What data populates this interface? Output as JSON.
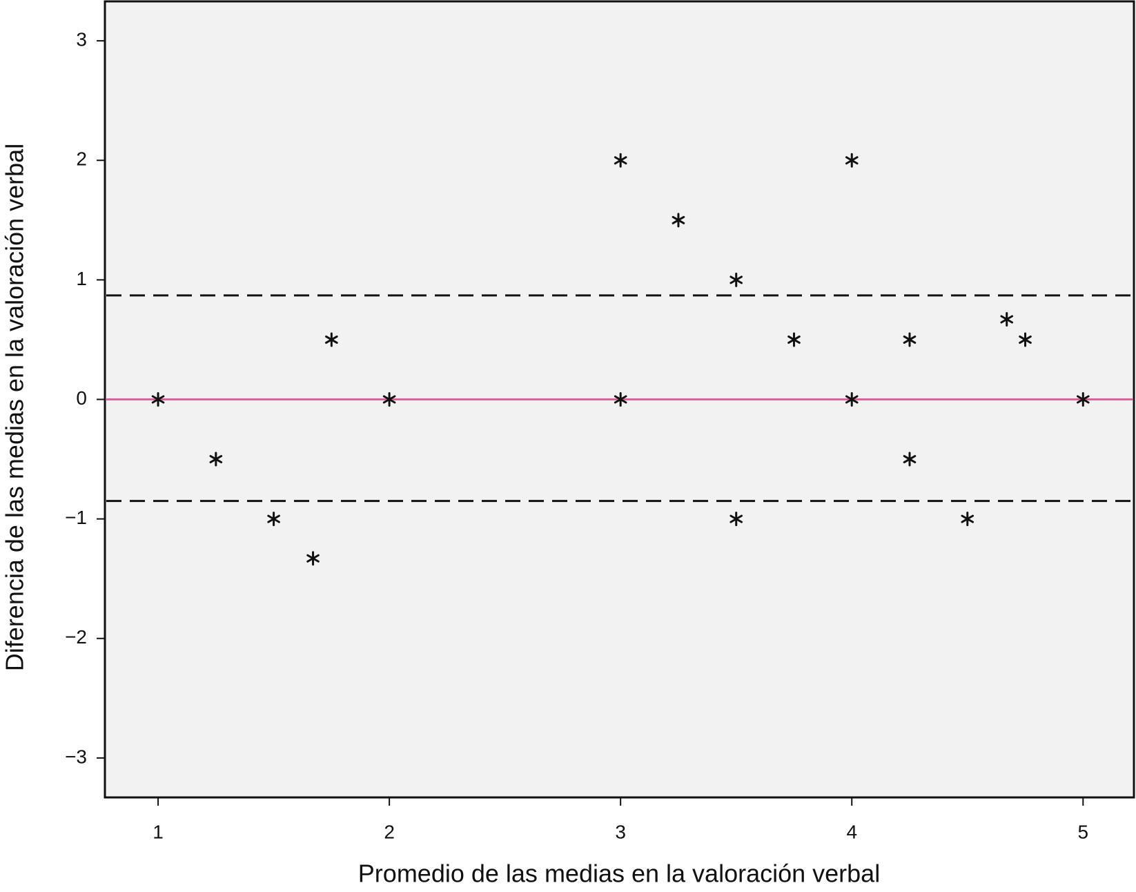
{
  "chart_data": {
    "type": "scatter",
    "x_label": "Promedio de las  medias en la valoración verbal",
    "y_label": "Diferencia de las medias en la valoración verbal",
    "x": [
      1,
      1.25,
      1.5,
      1.67,
      1.75,
      2,
      3,
      3,
      3.25,
      3.5,
      3.5,
      3.75,
      4,
      4,
      4.25,
      4.25,
      4.5,
      4.67,
      4.75,
      5
    ],
    "values": [
      0,
      -0.5,
      -1,
      -1.33,
      0.5,
      0,
      2,
      0,
      1.5,
      1,
      -1,
      0.5,
      2,
      0,
      0.5,
      -0.5,
      -1,
      0.67,
      0.5,
      0
    ],
    "color": "#111111",
    "background": "#f2f2f2",
    "xlim": [
      0.77,
      5.22
    ],
    "ylim": [
      -3.33,
      3.33
    ],
    "xticks": [
      1,
      2,
      3,
      4,
      5
    ],
    "yticks": [
      {
        "value": -3,
        "label": "−3"
      },
      {
        "value": -2,
        "label": "−2"
      },
      {
        "value": -1,
        "label": "−1"
      },
      0,
      1,
      2,
      3
    ],
    "reference_lines": [
      {
        "value": 0,
        "color": "#e0609a",
        "style": "solid"
      },
      {
        "value": 0.87,
        "color": "#111111",
        "style": "dashed"
      },
      {
        "value": -0.85,
        "color": "#111111",
        "style": "dashed"
      }
    ]
  }
}
